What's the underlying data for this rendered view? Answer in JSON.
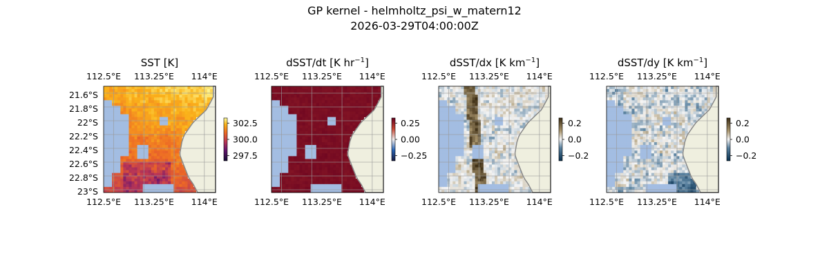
{
  "figure": {
    "title": "GP kernel - helmholtz_psi_w_matern12",
    "subtitle": "2026-03-29T04:00:00Z"
  },
  "chart_data": [
    {
      "type": "heatmap",
      "title": "SST [K]",
      "title_unit_base": "SST [K]",
      "title_sup": "",
      "title_tail": "",
      "colormap": "inferno",
      "colorbar_ticks": [
        "302.5",
        "300.0",
        "297.5"
      ],
      "vrange": [
        297.0,
        303.5
      ],
      "x_ticks_top": [
        "112.5°E",
        "113.25°E",
        "114°E"
      ],
      "x_ticks_bottom": [
        "112.5°E",
        "113.25°E",
        "114°E"
      ],
      "y_ticks": [
        "21.6°S",
        "21.8°S",
        "22°S",
        "22.2°S",
        "22.4°S",
        "22.6°S",
        "22.8°S",
        "23°S"
      ],
      "show_y_ticks": true,
      "land_color": "#efefdf",
      "ocean_mask_color": "#a3bde2"
    },
    {
      "type": "heatmap",
      "title": "dSST/dt [K hr−1]",
      "title_unit_base": "dSST/dt [K hr",
      "title_sup": "−1",
      "title_tail": "]",
      "colormap": "balance",
      "colorbar_ticks": [
        "0.25",
        "0.00",
        "−0.25"
      ],
      "vrange": [
        -0.4,
        0.4
      ],
      "x_ticks_top": [
        "112.5°E",
        "113.25°E",
        "114°E"
      ],
      "x_ticks_bottom": [
        "112.5°E",
        "113.25°E",
        "114°E"
      ],
      "show_y_ticks": false,
      "land_color": "#efefdf",
      "ocean_mask_color": "#a3bde2"
    },
    {
      "type": "heatmap",
      "title": "dSST/dx [K km−1]",
      "title_unit_base": "dSST/dx [K km",
      "title_sup": "−1",
      "title_tail": "]",
      "colormap": "diff",
      "colorbar_ticks": [
        "0.2",
        "0.0",
        "−0.2"
      ],
      "vrange": [
        -0.25,
        0.25
      ],
      "x_ticks_top": [
        "112.5°E",
        "113.25°E",
        "114°E"
      ],
      "x_ticks_bottom": [
        "112.5°E",
        "113.25°E",
        "114°E"
      ],
      "show_y_ticks": false,
      "land_color": "#efefdf",
      "ocean_mask_color": "#a3bde2"
    },
    {
      "type": "heatmap",
      "title": "dSST/dy [K km−1]",
      "title_unit_base": "dSST/dy [K km",
      "title_sup": "−1",
      "title_tail": "]",
      "colormap": "diff",
      "colorbar_ticks": [
        "0.2",
        "0.0",
        "−0.2"
      ],
      "vrange": [
        -0.25,
        0.25
      ],
      "x_ticks_top": [
        "112.5°E",
        "113.25°E",
        "114°E"
      ],
      "x_ticks_bottom": [
        "112.5°E",
        "113.25°E",
        "114°E"
      ],
      "show_y_ticks": false,
      "land_color": "#efefdf",
      "ocean_mask_color": "#a3bde2"
    }
  ]
}
